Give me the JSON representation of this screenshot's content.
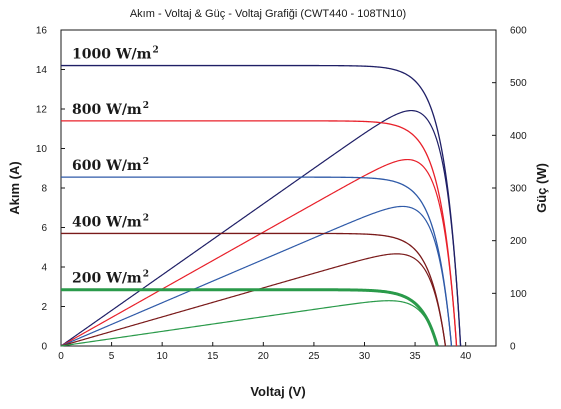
{
  "chart_data": {
    "type": "line",
    "title": "Akım - Voltaj & Güç - Voltaj Grafiği (CWT440 - 108TN10)",
    "xlabel": "Voltaj (V)",
    "ylabel": "Akım (A)",
    "y2label": "Güç (W)",
    "xlim": [
      0,
      43
    ],
    "ylim": [
      0,
      16
    ],
    "y2lim": [
      0,
      600
    ],
    "x_ticks": [
      "0",
      "5",
      "10",
      "15",
      "20",
      "25",
      "30",
      "35",
      "40"
    ],
    "y_ticks": [
      "0",
      "2",
      "4",
      "6",
      "8",
      "10",
      "12",
      "14",
      "16"
    ],
    "y2_ticks": [
      "0",
      "100",
      "200",
      "300",
      "400",
      "500",
      "600"
    ],
    "irradiance_unit": " W/m",
    "irradiance_unit_exp": "2",
    "series": [
      {
        "irradiance": "1000",
        "color": "#1f1f66",
        "isc": 14.2,
        "voc": 39.5,
        "pmax": 447,
        "vmp": 33.3
      },
      {
        "irradiance": "800",
        "color": "#e8202a",
        "isc": 11.4,
        "voc": 39.1,
        "pmax": 354,
        "vmp": 33.3
      },
      {
        "irradiance": "600",
        "color": "#2f5aa8",
        "isc": 8.55,
        "voc": 38.6,
        "pmax": 265,
        "vmp": 33.2
      },
      {
        "irradiance": "400",
        "color": "#7a1a1a",
        "isc": 5.7,
        "voc": 38.0,
        "pmax": 175,
        "vmp": 33.0
      },
      {
        "irradiance": "200",
        "color": "#2a9a4a",
        "isc": 2.85,
        "voc": 37.2,
        "pmax": 86,
        "vmp": 32.6
      }
    ],
    "grid": false,
    "legend": "inline labels"
  }
}
